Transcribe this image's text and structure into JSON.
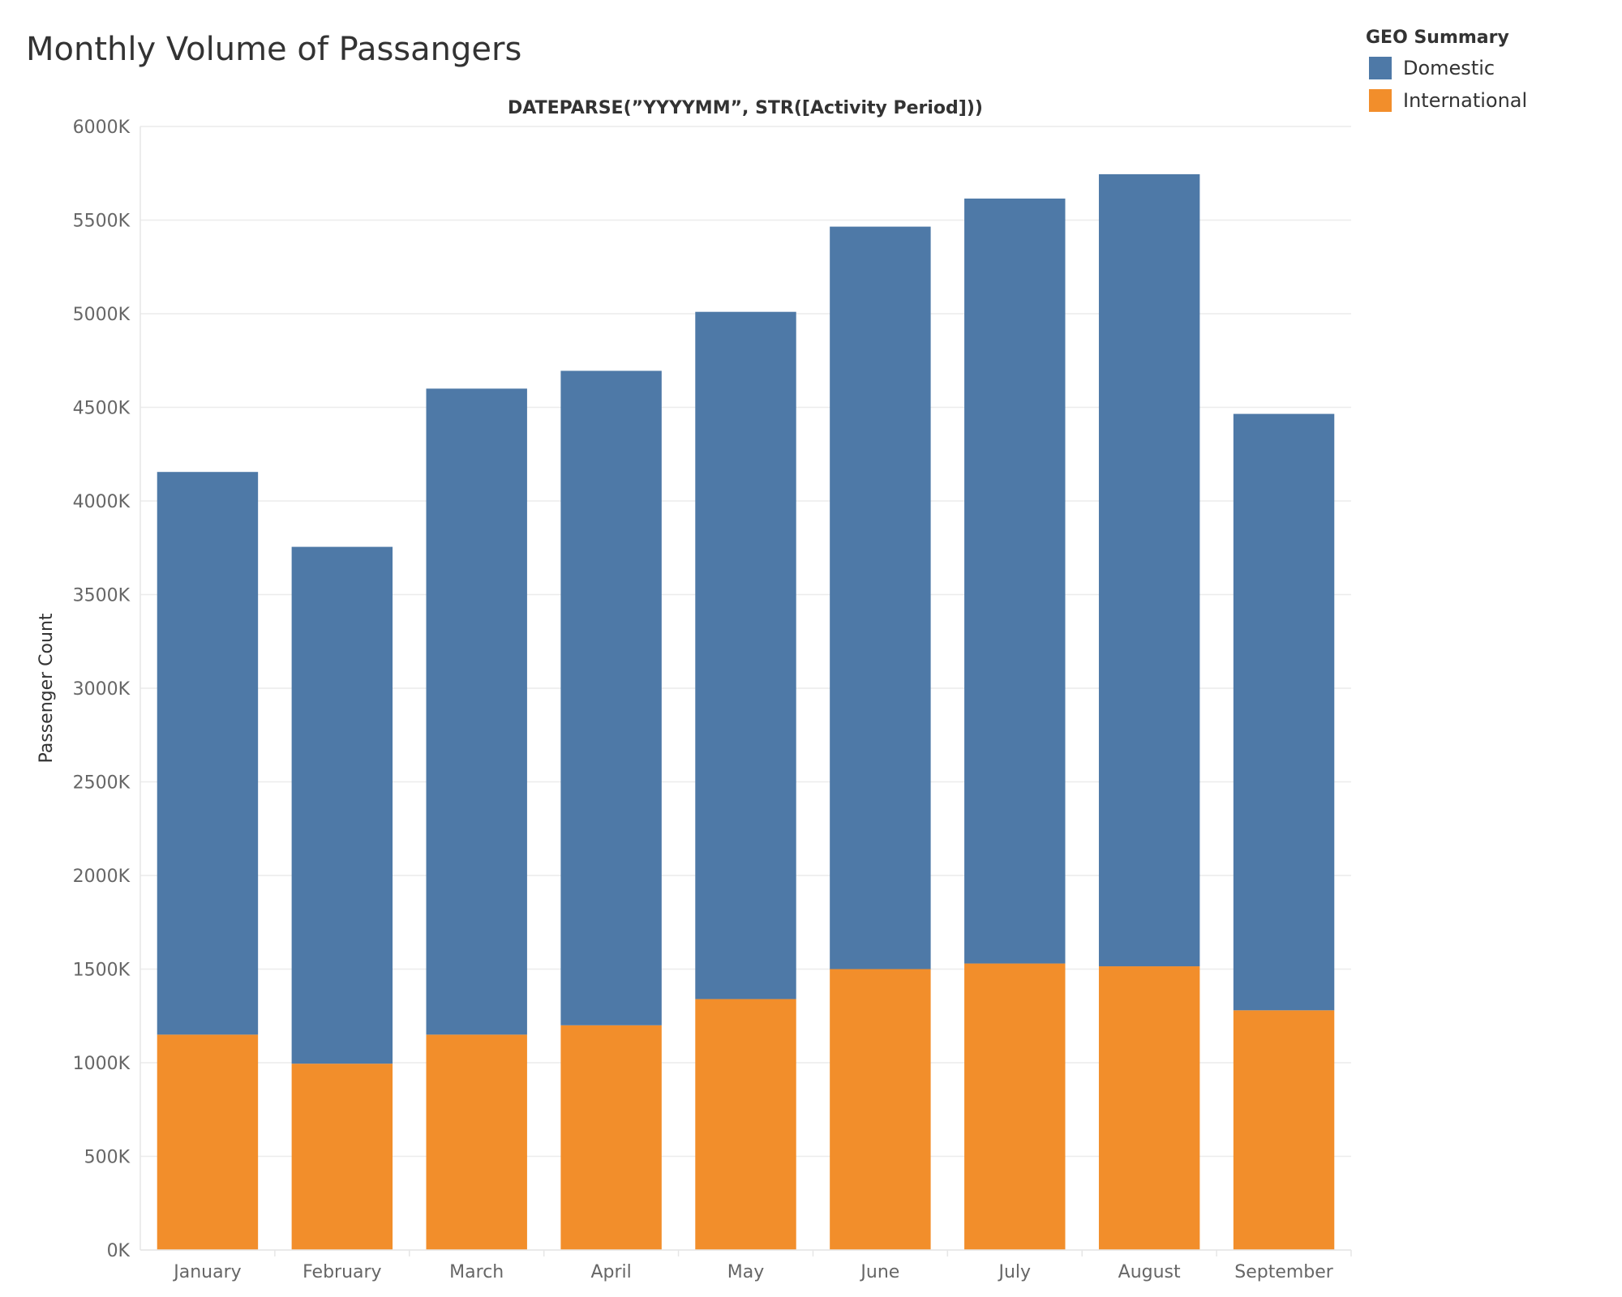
{
  "chart_data": {
    "type": "bar",
    "stacked": true,
    "title": "Monthly Volume of Passangers",
    "xlabel": "DATEPARSE(”YYYYMM”, STR([Activity Period]))",
    "ylabel": "Passenger Count",
    "categories": [
      "January",
      "February",
      "March",
      "April",
      "May",
      "June",
      "July",
      "August",
      "September"
    ],
    "series": [
      {
        "name": "International",
        "color": "#f28e2b",
        "values": [
          1150,
          995,
          1150,
          1200,
          1340,
          1500,
          1530,
          1515,
          1280
        ]
      },
      {
        "name": "Domestic",
        "color": "#4e79a7",
        "values": [
          3005,
          2760,
          3450,
          3495,
          3670,
          3965,
          4085,
          4230,
          3185
        ]
      }
    ],
    "yticks": [
      "0K",
      "500K",
      "1000K",
      "1500K",
      "2000K",
      "2500K",
      "3000K",
      "3500K",
      "4000K",
      "4500K",
      "5000K",
      "5500K",
      "6000K"
    ],
    "ylim": [
      0,
      6000
    ],
    "ystep": 500,
    "yunit": "K",
    "grid": true,
    "legend": {
      "title": "GEO Summary",
      "position": "top-right",
      "items": [
        {
          "label": "Domestic",
          "color": "#4e79a7"
        },
        {
          "label": "International",
          "color": "#f28e2b"
        }
      ]
    }
  }
}
